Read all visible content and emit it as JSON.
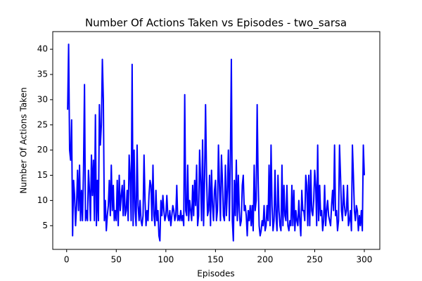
{
  "chart_data": {
    "type": "line",
    "title": "Number Of Actions Taken vs Episodes - two_sarsa",
    "x_label": "Episodes",
    "y_label": "Number Of Actions Taken",
    "xlim": [
      -14,
      315.6
    ],
    "ylim": [
      0.3,
      43.5
    ],
    "xticks": [
      0,
      50,
      100,
      150,
      200,
      250,
      300
    ],
    "yticks": [
      5,
      10,
      15,
      20,
      25,
      30,
      35,
      40
    ],
    "series": [
      {
        "name": "two_sarsa",
        "color": "#0000ff",
        "x": [
          1,
          2,
          3,
          4,
          5,
          6,
          7,
          8,
          9,
          10,
          11,
          12,
          13,
          14,
          15,
          16,
          17,
          18,
          19,
          20,
          21,
          22,
          23,
          24,
          25,
          26,
          27,
          28,
          29,
          30,
          31,
          32,
          33,
          34,
          35,
          36,
          37,
          38,
          39,
          40,
          41,
          42,
          43,
          44,
          45,
          46,
          47,
          48,
          49,
          50,
          51,
          52,
          53,
          54,
          55,
          56,
          57,
          58,
          59,
          60,
          61,
          62,
          63,
          64,
          65,
          66,
          67,
          68,
          69,
          70,
          71,
          72,
          73,
          74,
          75,
          76,
          77,
          78,
          79,
          80,
          81,
          82,
          83,
          84,
          85,
          86,
          87,
          88,
          89,
          90,
          91,
          92,
          93,
          94,
          95,
          96,
          97,
          98,
          99,
          100,
          101,
          102,
          103,
          104,
          105,
          106,
          107,
          108,
          109,
          110,
          111,
          112,
          113,
          114,
          115,
          116,
          117,
          118,
          119,
          120,
          121,
          122,
          123,
          124,
          125,
          126,
          127,
          128,
          129,
          130,
          131,
          132,
          133,
          134,
          135,
          136,
          137,
          138,
          139,
          140,
          141,
          142,
          143,
          144,
          145,
          146,
          147,
          148,
          149,
          150,
          151,
          152,
          153,
          154,
          155,
          156,
          157,
          158,
          159,
          160,
          161,
          162,
          163,
          164,
          165,
          166,
          167,
          168,
          169,
          170,
          171,
          172,
          173,
          174,
          175,
          176,
          177,
          178,
          179,
          180,
          181,
          182,
          183,
          184,
          185,
          186,
          187,
          188,
          189,
          190,
          191,
          192,
          193,
          194,
          195,
          196,
          197,
          198,
          199,
          200,
          201,
          202,
          203,
          204,
          205,
          206,
          207,
          208,
          209,
          210,
          211,
          212,
          213,
          214,
          215,
          216,
          217,
          218,
          219,
          220,
          221,
          222,
          223,
          224,
          225,
          226,
          227,
          228,
          229,
          230,
          231,
          232,
          233,
          234,
          235,
          236,
          237,
          238,
          239,
          240,
          241,
          242,
          243,
          244,
          245,
          246,
          247,
          248,
          249,
          250,
          251,
          252,
          253,
          254,
          255,
          256,
          257,
          258,
          259,
          260,
          261,
          262,
          263,
          264,
          265,
          266,
          267,
          268,
          269,
          270,
          271,
          272,
          273,
          274,
          275,
          276,
          277,
          278,
          279,
          280,
          281,
          282,
          283,
          284,
          285,
          286,
          287,
          288,
          289,
          290,
          291,
          292,
          293,
          294,
          295,
          296,
          297,
          298,
          299,
          300
        ],
        "values": [
          28,
          41,
          20,
          18,
          26,
          3,
          14,
          11,
          5,
          9,
          16,
          8,
          17,
          6,
          12,
          6,
          16,
          33,
          6,
          8,
          6,
          16,
          12,
          6,
          19,
          11,
          18,
          6,
          27,
          5,
          14,
          6,
          29,
          21,
          25,
          38,
          30,
          6,
          10,
          4,
          7,
          9,
          14,
          7,
          17,
          8,
          13,
          6,
          8,
          6,
          14,
          5,
          15,
          8,
          11,
          13,
          7,
          14,
          7,
          8,
          12,
          6,
          19,
          15,
          6,
          37,
          5,
          20,
          8,
          5,
          21,
          9,
          6,
          10,
          6,
          5,
          7,
          19,
          10,
          5,
          8,
          6,
          11,
          14,
          13,
          6,
          17,
          7,
          5,
          12,
          6,
          8,
          3,
          2,
          10,
          7,
          11,
          8,
          6,
          7,
          11,
          7,
          6,
          8,
          5,
          7,
          9,
          8,
          6,
          7,
          13,
          6,
          7,
          6,
          8,
          6,
          7,
          5,
          31,
          8,
          7,
          17,
          6,
          10,
          8,
          6,
          13,
          7,
          14,
          9,
          17,
          5,
          7,
          20,
          14,
          6,
          22,
          5,
          14,
          29,
          15,
          7,
          8,
          15,
          5,
          16,
          9,
          6,
          12,
          14,
          6,
          8,
          21,
          13,
          6,
          19,
          14,
          7,
          6,
          17,
          7,
          12,
          20,
          6,
          18,
          38,
          6,
          2,
          14,
          7,
          18,
          6,
          15,
          8,
          5,
          6,
          13,
          15,
          8,
          9,
          7,
          3,
          8,
          6,
          9,
          5,
          9,
          4,
          17,
          8,
          10,
          29,
          14,
          5,
          3,
          4,
          6,
          5,
          9,
          4,
          5,
          9,
          6,
          17,
          5,
          21,
          9,
          4,
          6,
          16,
          7,
          4,
          15,
          8,
          5,
          4,
          17,
          5,
          13,
          7,
          6,
          13,
          5,
          4,
          6,
          5,
          13,
          5,
          12,
          4,
          8,
          6,
          5,
          10,
          6,
          3,
          12,
          8,
          8,
          6,
          15,
          13,
          5,
          15,
          5,
          16,
          8,
          7,
          10,
          16,
          13,
          5,
          21,
          6,
          13,
          7,
          8,
          4,
          6,
          13,
          5,
          8,
          10,
          7,
          6,
          5,
          9,
          12,
          8,
          21,
          7,
          8,
          4,
          6,
          21,
          15,
          8,
          6,
          13,
          9,
          7,
          8,
          13,
          5,
          6,
          8,
          4,
          21,
          15,
          8,
          6,
          9,
          8,
          4,
          7,
          5,
          8,
          4,
          21,
          15
        ]
      }
    ]
  }
}
